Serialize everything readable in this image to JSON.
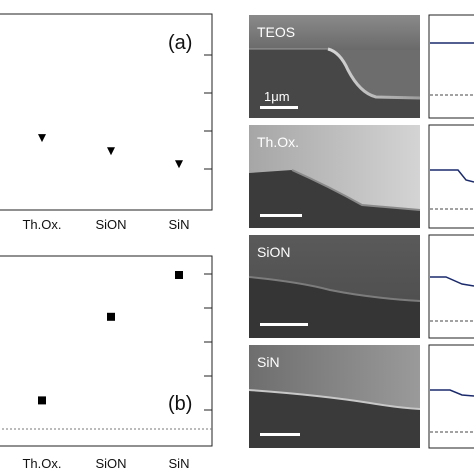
{
  "chart_data": [
    {
      "panel": "(a)",
      "type": "scatter",
      "marker": "triangle-down",
      "categories": [
        "Th.Ox.",
        "SiON",
        "SiN"
      ],
      "values": [
        2.2,
        1.8,
        1.4
      ],
      "ylim": [
        0,
        6
      ],
      "grid": false
    },
    {
      "panel": "(b)",
      "type": "scatter",
      "marker": "square",
      "categories": [
        "Th.Ox.",
        "SiON",
        "SiN"
      ],
      "values": [
        1.2,
        3.4,
        4.5
      ],
      "ylim": [
        0,
        5
      ],
      "reference_line": {
        "style": "dashed",
        "value": 0
      },
      "grid": false
    }
  ],
  "sem_panels": [
    {
      "label": "TEOS",
      "scale_bar": "1μm"
    },
    {
      "label": "Th.Ox.",
      "scale_bar": ""
    },
    {
      "label": "SiON",
      "scale_bar": ""
    },
    {
      "label": "SiN",
      "scale_bar": ""
    }
  ],
  "colors": {
    "profile_line": "#1a2a6c",
    "marker": "#000000",
    "sem_bright": "#cfcfcf",
    "sem_dark": "#3c3c3c"
  }
}
